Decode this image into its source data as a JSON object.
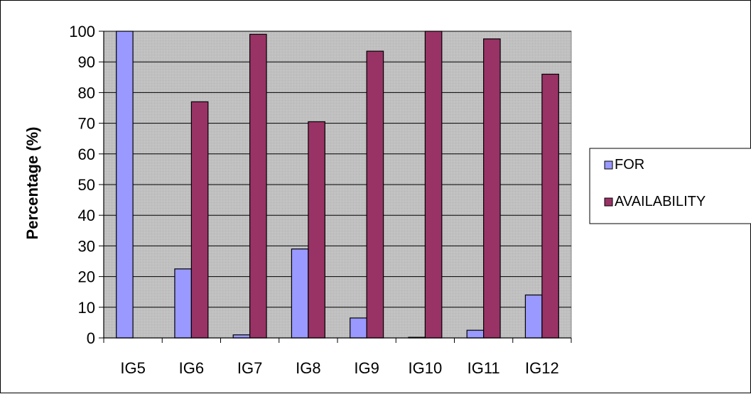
{
  "chart_data": {
    "type": "bar",
    "title": "",
    "xlabel": "",
    "ylabel": "Percentage (%)",
    "ylim": [
      0,
      100
    ],
    "yticks": [
      0,
      10,
      20,
      30,
      40,
      50,
      60,
      70,
      80,
      90,
      100
    ],
    "categories": [
      "IG5",
      "IG6",
      "IG7",
      "IG8",
      "IG9",
      "IG10",
      "IG11",
      "IG12"
    ],
    "series": [
      {
        "name": "FOR",
        "color": "#9999ff",
        "values": [
          100,
          22.5,
          1,
          29,
          6.5,
          0.2,
          2.5,
          14
        ]
      },
      {
        "name": "AVAILABILITY",
        "color": "#993366",
        "values": [
          0,
          77,
          99,
          70.5,
          93.5,
          100,
          97.5,
          86
        ]
      }
    ],
    "plot_background": "#c0c0c0",
    "grid": true,
    "legend_position": "right"
  }
}
